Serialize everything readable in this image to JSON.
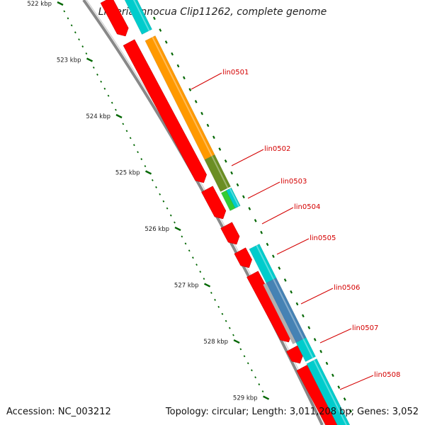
{
  "title": "Listeria innocua Clip11262, complete genome",
  "footer": {
    "accession": "Accession: NC_003212",
    "topology": "Topology: circular; Length: 3,011,208 bp; Genes: 3,052"
  },
  "ticks": [
    "522 kbp",
    "523 kbp",
    "524 kbp",
    "525 kbp",
    "526 kbp",
    "527 kbp",
    "528 kbp",
    "529 kbp"
  ],
  "genes": [
    {
      "name": "lin0501",
      "color": "#ff9900"
    },
    {
      "name": "lin0502",
      "color": "#6b8e23"
    },
    {
      "name": "lin0503",
      "color": "#33cc33"
    },
    {
      "name": "lin0504",
      "color": "#00cccc"
    },
    {
      "name": "lin0505",
      "color": "#00cccc"
    },
    {
      "name": "lin0506",
      "color": "#4682b4"
    },
    {
      "name": "lin0507",
      "color": "#00cccc"
    },
    {
      "name": "lin0508",
      "color": "#00cccc"
    }
  ],
  "colors": {
    "cds": "#ff0000",
    "backbone": "#888888",
    "tick": "#006600",
    "label": "#d40000"
  }
}
